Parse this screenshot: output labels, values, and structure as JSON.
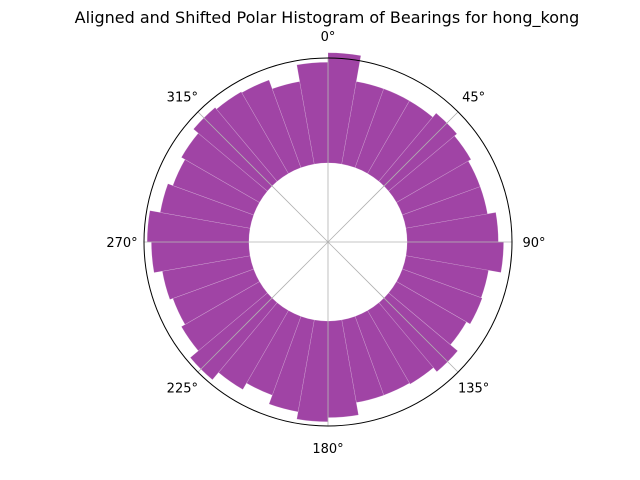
{
  "chart_data": {
    "type": "bar",
    "subtype": "polar-histogram",
    "title": "Aligned and Shifted Polar Histogram of Bearings for hong_kong",
    "theta_zero": "top",
    "theta_direction": "clockwise",
    "bar_color": "#9b3aa0",
    "bar_opacity": 0.95,
    "grid": true,
    "inner_hole": 0.43,
    "r_range": [
      0,
      1
    ],
    "angle_ticks": [
      {
        "deg": 0,
        "label": "0°"
      },
      {
        "deg": 45,
        "label": "45°"
      },
      {
        "deg": 90,
        "label": "90°"
      },
      {
        "deg": 135,
        "label": "135°"
      },
      {
        "deg": 180,
        "label": "180°"
      },
      {
        "deg": 225,
        "label": "225°"
      },
      {
        "deg": 270,
        "label": "270°"
      },
      {
        "deg": 315,
        "label": "315°"
      }
    ],
    "bin_width_deg": 10,
    "bin_centers_deg": [
      5,
      15,
      25,
      35,
      45,
      55,
      65,
      75,
      85,
      95,
      105,
      115,
      125,
      135,
      145,
      155,
      165,
      175,
      185,
      195,
      205,
      215,
      225,
      235,
      245,
      255,
      265,
      275,
      285,
      295,
      305,
      315,
      325,
      335,
      345,
      355
    ],
    "values": [
      1.05,
      0.8,
      0.8,
      0.8,
      0.85,
      0.82,
      0.79,
      0.79,
      0.87,
      0.92,
      0.8,
      0.81,
      0.77,
      0.86,
      0.81,
      0.8,
      0.8,
      0.92,
      0.96,
      0.89,
      0.8,
      0.87,
      0.96,
      0.86,
      0.82,
      0.85,
      0.93,
      0.97,
      0.87,
      0.82,
      0.86,
      0.92,
      0.9,
      0.89,
      0.8,
      0.96
    ]
  }
}
